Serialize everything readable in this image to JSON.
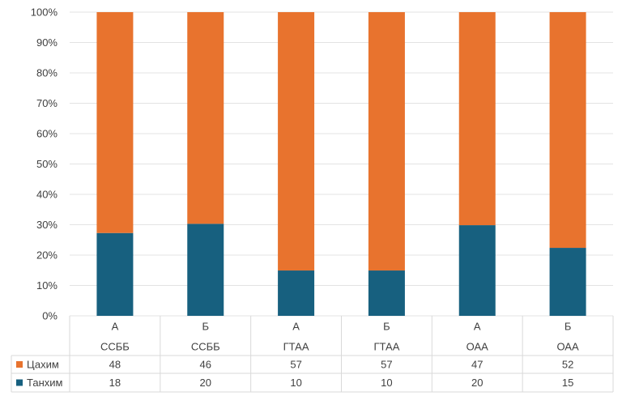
{
  "chart_data": {
    "type": "bar",
    "stacked": true,
    "normalized": true,
    "categories": [
      {
        "top": "А",
        "bottom": "ССББ"
      },
      {
        "top": "Б",
        "bottom": "ССББ"
      },
      {
        "top": "А",
        "bottom": "ГТАА"
      },
      {
        "top": "Б",
        "bottom": "ГТАА"
      },
      {
        "top": "А",
        "bottom": "ОАА"
      },
      {
        "top": "Б",
        "bottom": "ОАА"
      }
    ],
    "series": [
      {
        "name": "Танхим",
        "values": [
          18,
          20,
          10,
          10,
          20,
          15
        ],
        "color": "#17607f"
      },
      {
        "name": "Цахим",
        "values": [
          48,
          46,
          57,
          57,
          47,
          52
        ],
        "color": "#e8732e"
      }
    ],
    "y_ticks": [
      "0%",
      "10%",
      "20%",
      "30%",
      "40%",
      "50%",
      "60%",
      "70%",
      "80%",
      "90%",
      "100%"
    ],
    "ylim": [
      0,
      100
    ],
    "grid": true,
    "legend": "data-table-below"
  }
}
